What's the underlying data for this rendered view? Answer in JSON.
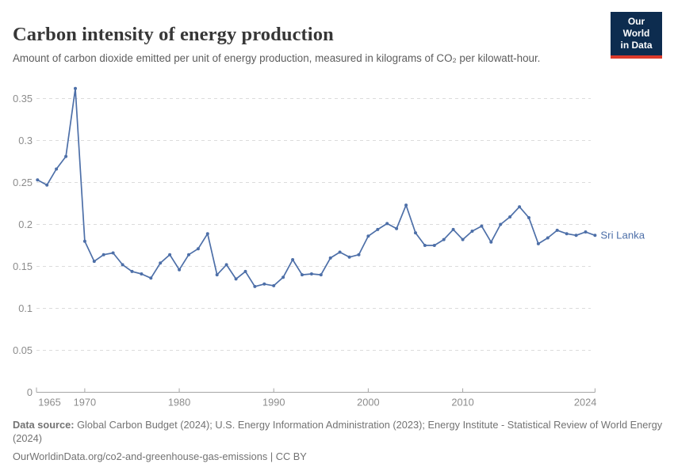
{
  "header": {
    "title": "Carbon intensity of energy production",
    "subtitle": "Amount of carbon dioxide emitted per unit of energy production, measured in kilograms of CO₂ per kilowatt-hour.",
    "logo": {
      "line1": "Our World",
      "line2": "in Data"
    }
  },
  "colors": {
    "series_blue": "#4d6fa8",
    "grid": "#dcdcdc",
    "axis": "#a5a5a5",
    "tick_text": "#8c8c8c",
    "logo_bg": "#0d2c4f",
    "logo_bar": "#dc3a2b"
  },
  "chart_data": {
    "type": "line",
    "title": "Carbon intensity of energy production",
    "xlabel": "",
    "ylabel": "kilograms of CO₂ per kilowatt-hour",
    "xlim": [
      1965,
      2024
    ],
    "ylim": [
      0,
      0.37
    ],
    "x_ticks": [
      1965,
      1970,
      1980,
      1990,
      2000,
      2010,
      2024
    ],
    "y_ticks": [
      0,
      0.05,
      0.1,
      0.15,
      0.2,
      0.25,
      0.3,
      0.35
    ],
    "grid": "horizontal-dashed",
    "legend": "end-of-line-label",
    "series": [
      {
        "name": "Sri Lanka",
        "x": [
          1965,
          1966,
          1967,
          1968,
          1969,
          1970,
          1971,
          1972,
          1973,
          1974,
          1975,
          1976,
          1977,
          1978,
          1979,
          1980,
          1981,
          1982,
          1983,
          1984,
          1985,
          1986,
          1987,
          1988,
          1989,
          1990,
          1991,
          1992,
          1993,
          1994,
          1995,
          1996,
          1997,
          1998,
          1999,
          2000,
          2001,
          2002,
          2003,
          2004,
          2005,
          2006,
          2007,
          2008,
          2009,
          2010,
          2011,
          2012,
          2013,
          2014,
          2015,
          2016,
          2017,
          2018,
          2019,
          2020,
          2021,
          2022,
          2023,
          2024
        ],
        "values": [
          0.253,
          0.247,
          0.266,
          0.281,
          0.362,
          0.18,
          0.156,
          0.164,
          0.166,
          0.152,
          0.144,
          0.141,
          0.136,
          0.154,
          0.164,
          0.146,
          0.164,
          0.171,
          0.189,
          0.14,
          0.152,
          0.135,
          0.144,
          0.126,
          0.129,
          0.127,
          0.137,
          0.158,
          0.14,
          0.141,
          0.14,
          0.16,
          0.167,
          0.161,
          0.164,
          0.186,
          0.194,
          0.201,
          0.195,
          0.223,
          0.19,
          0.175,
          0.175,
          0.182,
          0.194,
          0.182,
          0.192,
          0.198,
          0.179,
          0.2,
          0.209,
          0.221,
          0.208,
          0.177,
          0.184,
          0.193,
          0.189,
          0.187,
          0.191,
          0.187
        ]
      }
    ]
  },
  "footer": {
    "source_label": "Data source:",
    "source_text": " Global Carbon Budget (2024); U.S. Energy Information Administration (2023); Energy Institute - Statistical Review of World Energy (2024)",
    "link_line": "OurWorldinData.org/co2-and-greenhouse-gas-emissions | CC BY"
  }
}
